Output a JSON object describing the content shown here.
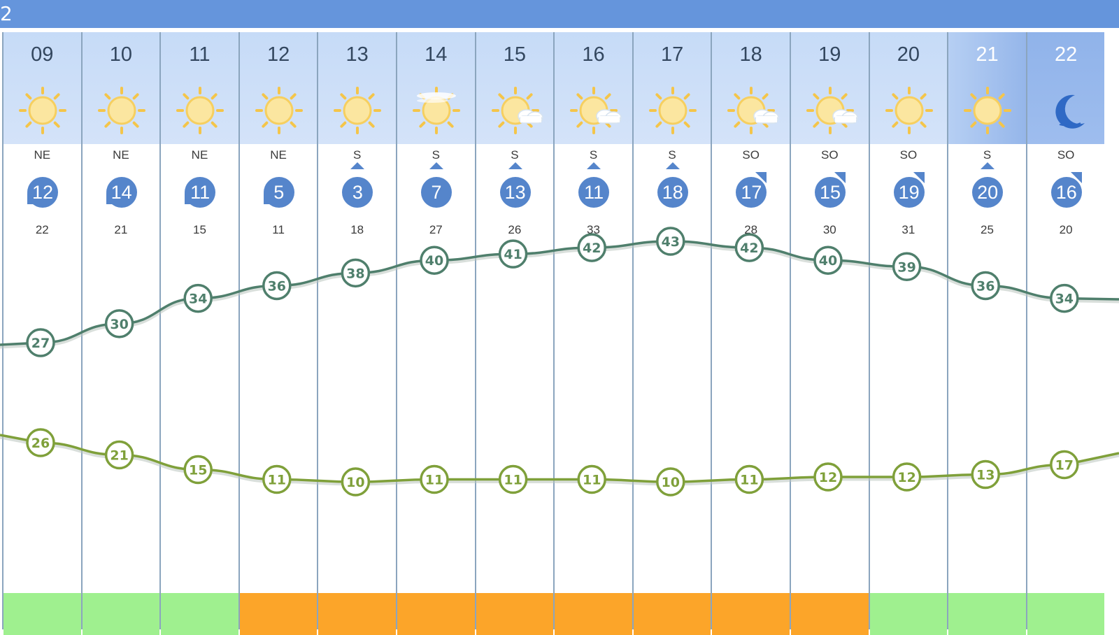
{
  "header": {
    "fragment_text": "2"
  },
  "colors": {
    "bar": "#6595dc",
    "day_header": "#c6dbf7",
    "night_header": "#90b3ea",
    "wind_badge": "#5585cb",
    "line_upper": "#4f7f6c",
    "line_lower": "#7fa03a",
    "strip_low": "#9ff08f",
    "strip_high": "#fca529"
  },
  "hours": [
    {
      "hour": "09",
      "icon": "sun-icon",
      "time": "day",
      "wind_dir": "NE",
      "arrow": "arrow-southwest-icon",
      "wind": "12",
      "gust": "22",
      "strip": "low"
    },
    {
      "hour": "10",
      "icon": "sun-icon",
      "time": "day",
      "wind_dir": "NE",
      "arrow": "arrow-southwest-icon",
      "wind": "14",
      "gust": "21",
      "strip": "low"
    },
    {
      "hour": "11",
      "icon": "sun-icon",
      "time": "day",
      "wind_dir": "NE",
      "arrow": "arrow-southwest-icon",
      "wind": "11",
      "gust": "15",
      "strip": "low"
    },
    {
      "hour": "12",
      "icon": "sun-icon",
      "time": "day",
      "wind_dir": "NE",
      "arrow": "arrow-southwest-icon",
      "wind": "5",
      "gust": "11",
      "strip": "high"
    },
    {
      "hour": "13",
      "icon": "sun-icon",
      "time": "day",
      "wind_dir": "S",
      "arrow": "arrow-north-icon",
      "wind": "3",
      "gust": "18",
      "strip": "high"
    },
    {
      "hour": "14",
      "icon": "sun-haze-icon",
      "time": "day",
      "wind_dir": "S",
      "arrow": "arrow-north-icon",
      "wind": "7",
      "gust": "27",
      "strip": "high"
    },
    {
      "hour": "15",
      "icon": "sun-cloud-icon",
      "time": "day",
      "wind_dir": "S",
      "arrow": "arrow-north-icon",
      "wind": "13",
      "gust": "26",
      "strip": "high"
    },
    {
      "hour": "16",
      "icon": "sun-cloud-icon",
      "time": "day",
      "wind_dir": "S",
      "arrow": "arrow-north-icon",
      "wind": "11",
      "gust": "33",
      "strip": "high"
    },
    {
      "hour": "17",
      "icon": "sun-icon",
      "time": "day",
      "wind_dir": "S",
      "arrow": "arrow-north-icon",
      "wind": "18",
      "gust": "",
      "strip": "high"
    },
    {
      "hour": "18",
      "icon": "sun-cloud-icon",
      "time": "day",
      "wind_dir": "SO",
      "arrow": "arrow-northeast-icon",
      "wind": "17",
      "gust": "28",
      "strip": "high"
    },
    {
      "hour": "19",
      "icon": "sun-cloud-icon",
      "time": "day",
      "wind_dir": "SO",
      "arrow": "arrow-northeast-icon",
      "wind": "15",
      "gust": "30",
      "strip": "high"
    },
    {
      "hour": "20",
      "icon": "sun-icon",
      "time": "day",
      "wind_dir": "SO",
      "arrow": "arrow-northeast-icon",
      "wind": "19",
      "gust": "31",
      "strip": "low"
    },
    {
      "hour": "21",
      "icon": "sun-icon",
      "time": "dusk",
      "wind_dir": "S",
      "arrow": "arrow-north-icon",
      "wind": "20",
      "gust": "25",
      "strip": "low"
    },
    {
      "hour": "22",
      "icon": "moon-icon",
      "time": "night",
      "wind_dir": "SO",
      "arrow": "arrow-northeast-icon",
      "wind": "16",
      "gust": "20",
      "strip": "low"
    }
  ],
  "upper_series": [
    "27",
    "30",
    "34",
    "36",
    "38",
    "40",
    "41",
    "42",
    "43",
    "42",
    "40",
    "39",
    "36",
    "34"
  ],
  "lower_series": [
    "26",
    "21",
    "15",
    "11",
    "10",
    "11",
    "11",
    "11",
    "10",
    "11",
    "12",
    "12",
    "13",
    "17"
  ]
}
